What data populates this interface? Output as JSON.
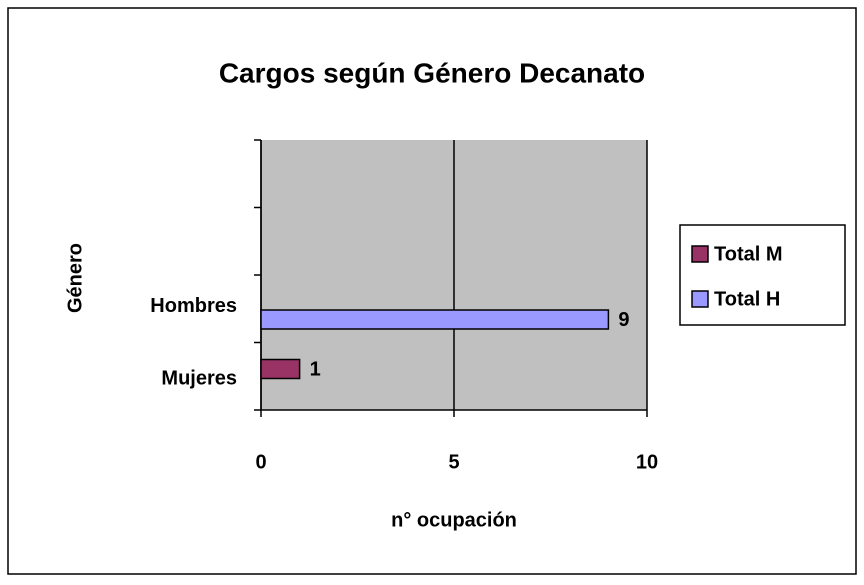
{
  "chart_data": {
    "type": "bar",
    "orientation": "horizontal",
    "title": "Cargos según Género Decanato",
    "x_label": "n° ocupación",
    "y_label": "Género",
    "categories": [
      "Mujeres",
      "Hombres",
      null,
      null
    ],
    "series": [
      {
        "name": "Total M",
        "color": "#993366",
        "values": [
          1,
          null,
          null,
          null
        ]
      },
      {
        "name": "Total H",
        "color": "#9999ff",
        "values": [
          null,
          9,
          null,
          null
        ]
      }
    ],
    "xlim": [
      0,
      10
    ],
    "xticks": [
      0,
      5,
      10
    ],
    "grid": true,
    "legend": "right",
    "plot_background": "#c0c0c0"
  }
}
